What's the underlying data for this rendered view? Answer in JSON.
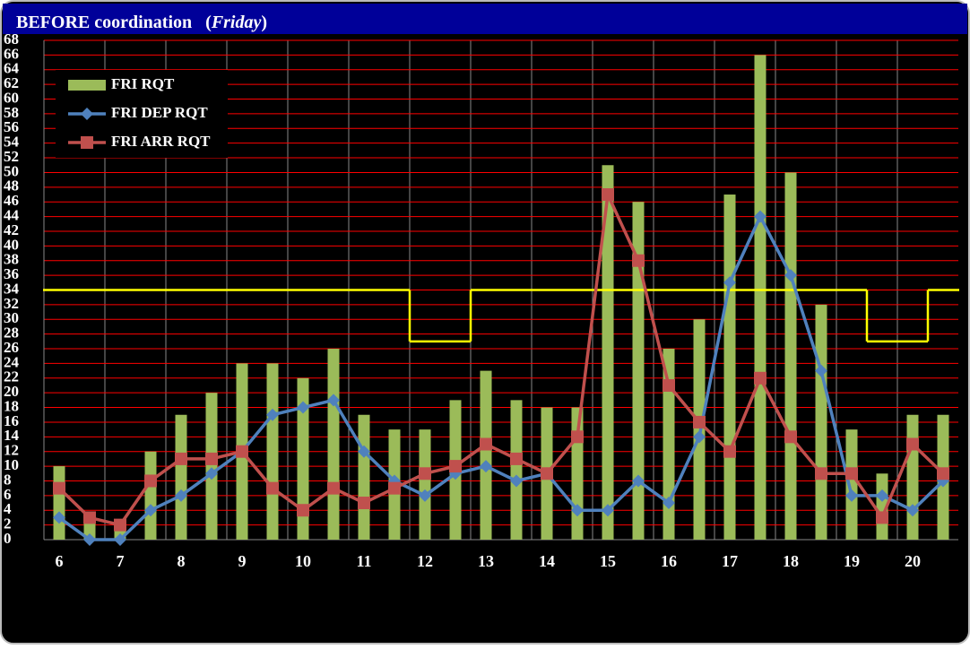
{
  "chart_data": {
    "type": "bar-line",
    "title": "BEFORE  coordination",
    "subtitle": "Friday",
    "categories": [
      "6",
      null,
      "7",
      null,
      "8",
      null,
      "9",
      null,
      "10",
      null,
      "11",
      null,
      "12",
      null,
      "13",
      null,
      "14",
      null,
      "15",
      null,
      "16",
      null,
      "17",
      null,
      "18",
      null,
      "19",
      null,
      "20",
      null
    ],
    "series": [
      {
        "name": "FRI RQT",
        "color": "#9bbb59",
        "kind": "bar",
        "values": [
          10,
          3,
          2,
          12,
          17,
          20,
          24,
          24,
          22,
          26,
          17,
          15,
          15,
          19,
          23,
          19,
          18,
          18,
          51,
          46,
          26,
          30,
          47,
          66,
          50,
          32,
          15,
          9,
          17,
          17
        ]
      },
      {
        "name": "FRI DEP RQT",
        "color": "#4f81bd",
        "kind": "line",
        "marker": "diamond",
        "values": [
          3,
          0,
          0,
          4,
          6,
          9,
          12,
          17,
          18,
          19,
          12,
          8,
          6,
          9,
          10,
          8,
          9,
          4,
          4,
          8,
          5,
          14,
          35,
          44,
          36,
          23,
          6,
          6,
          4,
          8
        ]
      },
      {
        "name": "FRI ARR RQT",
        "color": "#c0504d",
        "kind": "line",
        "marker": "square",
        "values": [
          7,
          3,
          2,
          8,
          11,
          11,
          12,
          7,
          4,
          7,
          5,
          7,
          9,
          10,
          13,
          11,
          9,
          14,
          47,
          38,
          21,
          16,
          12,
          22,
          14,
          9,
          9,
          3,
          13,
          9
        ]
      }
    ],
    "capacity": {
      "color": "#ffff00",
      "values": [
        34,
        34,
        34,
        34,
        34,
        34,
        34,
        34,
        34,
        34,
        34,
        34,
        27,
        27,
        34,
        34,
        34,
        34,
        34,
        34,
        34,
        34,
        34,
        34,
        34,
        34,
        34,
        27,
        27,
        34
      ]
    },
    "ylim": [
      0,
      68
    ],
    "yticks": [
      0,
      2,
      4,
      6,
      8,
      10,
      12,
      14,
      16,
      18,
      20,
      22,
      24,
      26,
      28,
      30,
      32,
      34,
      36,
      38,
      40,
      42,
      44,
      46,
      48,
      50,
      52,
      54,
      56,
      58,
      60,
      62,
      64,
      66,
      68
    ],
    "grid": true,
    "grid_color": "#ff0000",
    "legend": "upper-left"
  }
}
